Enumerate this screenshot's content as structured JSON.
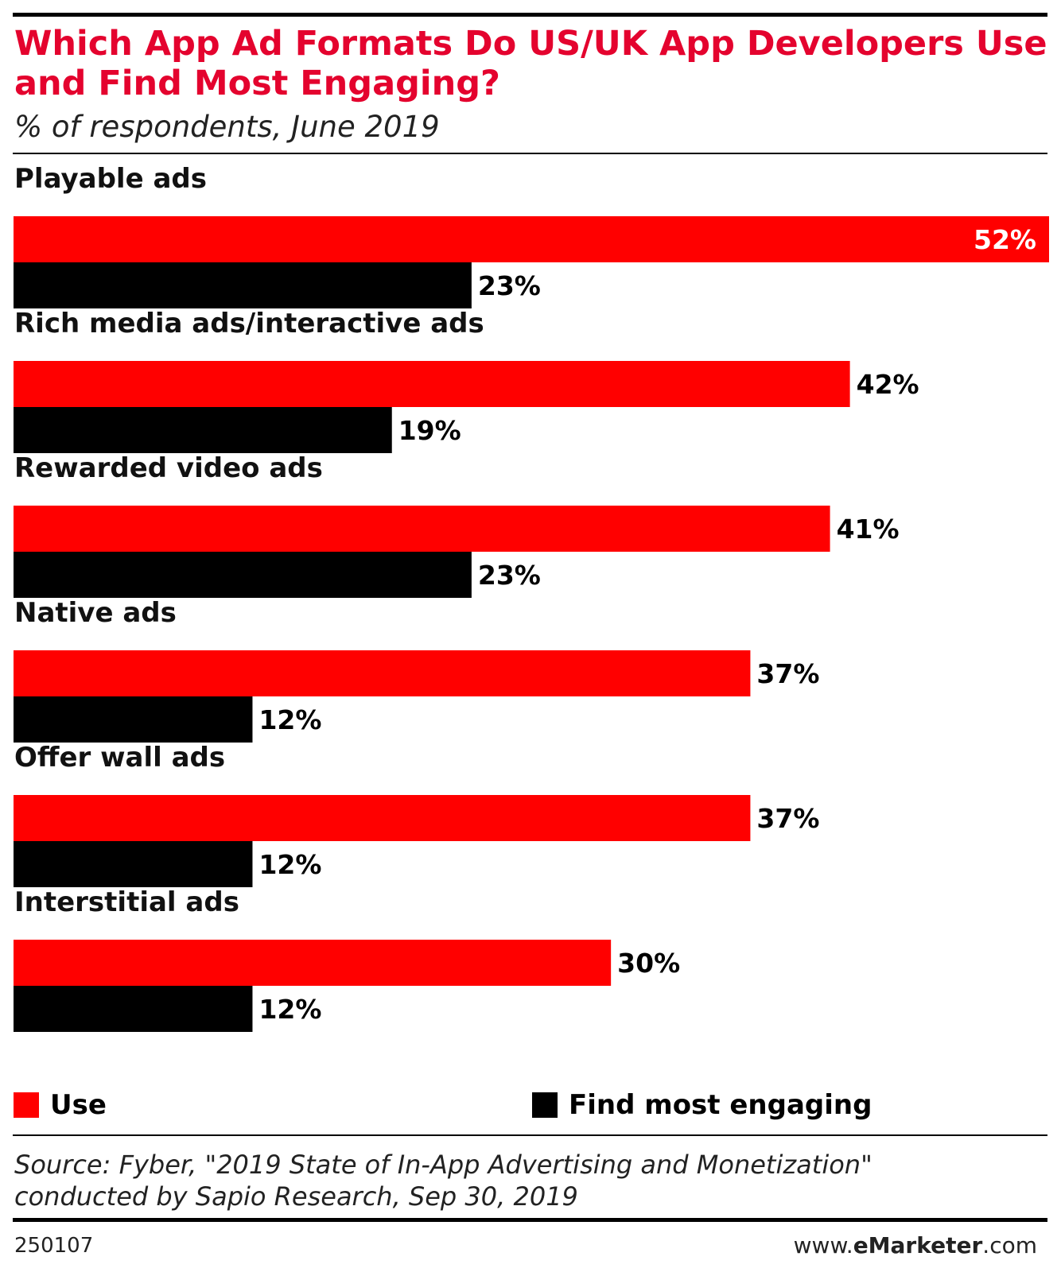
{
  "chart_data": {
    "type": "bar",
    "orientation": "horizontal",
    "title": "Which App Ad Formats Do US/UK App Developers Use and Find Most Engaging?",
    "subtitle": "% of respondents, June 2019",
    "categories": [
      "Playable ads",
      "Rich media ads/interactive ads",
      "Rewarded video ads",
      "Native ads",
      "Offer wall ads",
      "Interstitial ads"
    ],
    "series": [
      {
        "name": "Use",
        "color": "#ff0000",
        "values": [
          52,
          42,
          41,
          37,
          37,
          30
        ],
        "labels": [
          "52%",
          "42%",
          "41%",
          "37%",
          "37%",
          "30%"
        ]
      },
      {
        "name": "Find most engaging",
        "color": "#000000",
        "values": [
          23,
          19,
          23,
          12,
          12,
          12
        ],
        "labels": [
          "23%",
          "19%",
          "23%",
          "12%",
          "12%",
          "12%"
        ]
      }
    ],
    "xlim": [
      0,
      52
    ],
    "unit": "%",
    "legend": "bottom",
    "grid": false
  },
  "source": {
    "line1": "Source: Fyber, \"2019 State of In-App Advertising and Monetization\"",
    "line2": "conducted by Sapio Research, Sep 30, 2019"
  },
  "footer": {
    "chart_id": "250107",
    "brand_prefix": "www.",
    "brand_name": "eMarketer",
    "brand_suffix": ".com"
  }
}
